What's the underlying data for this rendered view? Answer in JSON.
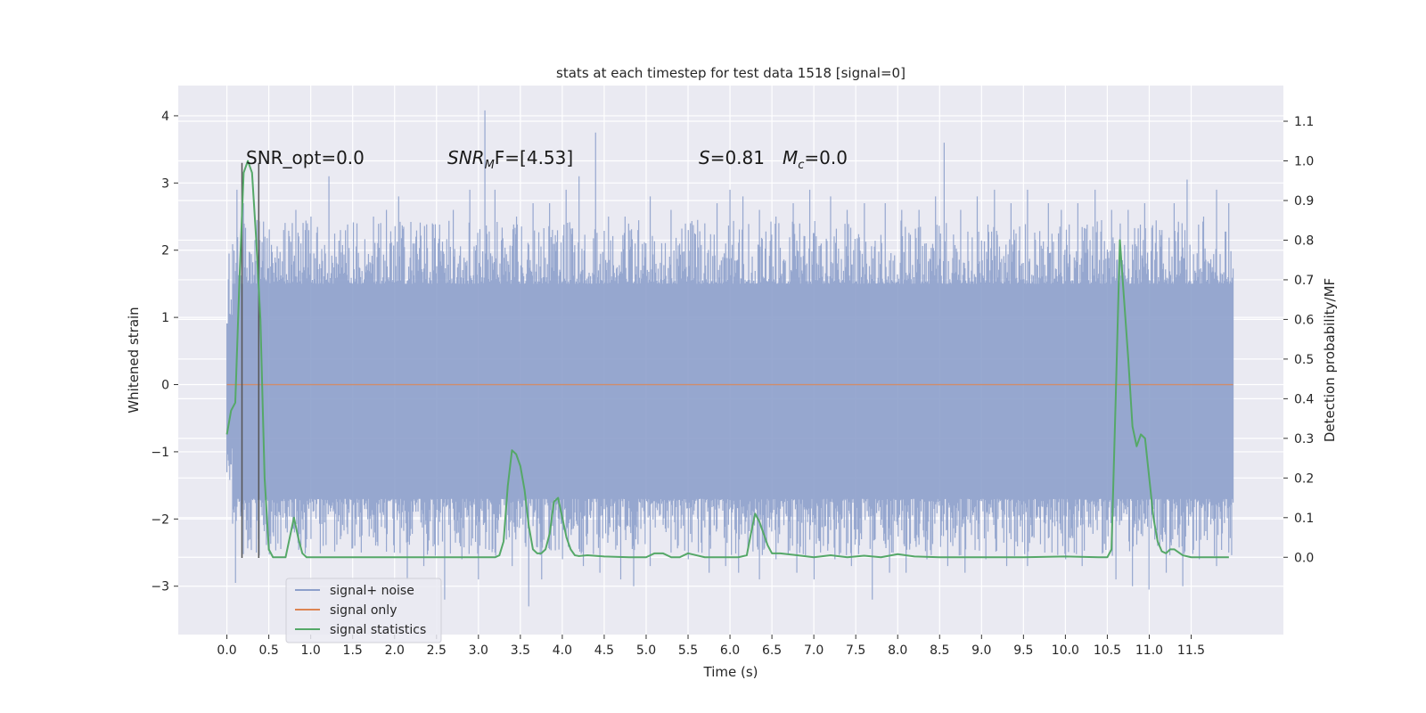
{
  "chart_data": {
    "type": "line",
    "title": "stats at each timestep for test data 1518 [signal=0]",
    "xlabel": "Time (s)",
    "ylabel_left": "Whitened strain",
    "ylabel_right": "Detection probability/MF",
    "xlim": [
      -0.58,
      12.6
    ],
    "ylim_left": [
      -3.72,
      4.45
    ],
    "ylim_right": [
      -0.195,
      1.19
    ],
    "x_ticks": [
      "0.0",
      "0.5",
      "1.0",
      "1.5",
      "2.0",
      "2.5",
      "3.0",
      "3.5",
      "4.0",
      "4.5",
      "5.0",
      "5.5",
      "6.0",
      "6.5",
      "7.0",
      "7.5",
      "8.0",
      "8.5",
      "9.0",
      "9.5",
      "10.0",
      "10.5",
      "11.0",
      "11.5"
    ],
    "y_left_ticks": [
      "−3",
      "−2",
      "−1",
      "0",
      "1",
      "2",
      "3",
      "4"
    ],
    "y_right_ticks": [
      "0.0",
      "0.1",
      "0.2",
      "0.3",
      "0.4",
      "0.5",
      "0.6",
      "0.7",
      "0.8",
      "0.9",
      "1.0",
      "1.1"
    ],
    "grid": true,
    "legend_position": "lower-left",
    "annotations": {
      "snr_opt": "SNR_opt=0.0",
      "snr_mf_sym": "SNR",
      "snr_mf_sub": "M",
      "snr_mf_rest": "F=[4.53]",
      "s_sym": "S",
      "s_val": "=0.81",
      "mc_sym": "M",
      "mc_sub": "c",
      "mc_val": "=0.0"
    },
    "markers_x": [
      0.18,
      0.38
    ],
    "colors": {
      "signal_noise": "#8da0cb",
      "signal_only": "#dd8452",
      "signal_statistics": "#55a868",
      "background": "#eaeaf2",
      "grid": "#ffffff"
    },
    "series": [
      {
        "name": "signal+ noise",
        "axis": "left",
        "x_range": [
          0.0,
          12.0
        ],
        "envelope_upper_typical": 1.5,
        "envelope_lower_typical": -1.7,
        "peaks": [
          [
            0.03,
            1.95
          ],
          [
            0.12,
            2.9
          ],
          [
            0.2,
            2.7
          ],
          [
            0.33,
            2.15
          ],
          [
            0.45,
            2.2
          ],
          [
            0.68,
            2.3
          ],
          [
            0.82,
            2.6
          ],
          [
            1.0,
            2.5
          ],
          [
            1.22,
            3.1
          ],
          [
            1.35,
            2.3
          ],
          [
            1.55,
            2.4
          ],
          [
            1.75,
            2.5
          ],
          [
            1.9,
            2.6
          ],
          [
            2.05,
            2.8
          ],
          [
            2.25,
            2.2
          ],
          [
            2.45,
            2.4
          ],
          [
            2.7,
            2.6
          ],
          [
            2.9,
            2.9
          ],
          [
            3.08,
            4.08
          ],
          [
            3.2,
            2.9
          ],
          [
            3.45,
            2.5
          ],
          [
            3.65,
            2.7
          ],
          [
            3.85,
            2.7
          ],
          [
            4.05,
            2.9
          ],
          [
            4.2,
            3.1
          ],
          [
            4.4,
            3.75
          ],
          [
            4.55,
            2.5
          ],
          [
            4.75,
            2.5
          ],
          [
            4.9,
            2.3
          ],
          [
            5.05,
            2.8
          ],
          [
            5.3,
            2.6
          ],
          [
            5.5,
            2.3
          ],
          [
            5.7,
            2.4
          ],
          [
            5.85,
            2.7
          ],
          [
            6.0,
            2.9
          ],
          [
            6.15,
            2.8
          ],
          [
            6.35,
            2.6
          ],
          [
            6.55,
            2.5
          ],
          [
            6.75,
            2.7
          ],
          [
            6.95,
            2.9
          ],
          [
            7.2,
            2.8
          ],
          [
            7.4,
            2.6
          ],
          [
            7.6,
            2.7
          ],
          [
            7.85,
            2.7
          ],
          [
            8.05,
            2.6
          ],
          [
            8.25,
            2.6
          ],
          [
            8.45,
            2.8
          ],
          [
            8.55,
            3.6
          ],
          [
            8.75,
            2.6
          ],
          [
            8.95,
            2.8
          ],
          [
            9.15,
            2.9
          ],
          [
            9.35,
            2.7
          ],
          [
            9.55,
            2.9
          ],
          [
            9.8,
            2.7
          ],
          [
            9.95,
            2.6
          ],
          [
            10.15,
            2.7
          ],
          [
            10.35,
            2.9
          ],
          [
            10.55,
            2.6
          ],
          [
            10.75,
            2.6
          ],
          [
            10.95,
            2.7
          ],
          [
            11.15,
            2.3
          ],
          [
            11.3,
            2.7
          ],
          [
            11.45,
            3.05
          ],
          [
            11.65,
            2.5
          ],
          [
            11.8,
            2.9
          ],
          [
            11.95,
            2.7
          ]
        ],
        "troughs": [
          [
            0.1,
            -2.95
          ],
          [
            0.35,
            -2.5
          ],
          [
            0.55,
            -2.2
          ],
          [
            0.72,
            -2.2
          ],
          [
            0.95,
            -2.3
          ],
          [
            1.15,
            -2.4
          ],
          [
            1.35,
            -2.3
          ],
          [
            1.6,
            -2.5
          ],
          [
            1.8,
            -2.4
          ],
          [
            2.0,
            -2.5
          ],
          [
            2.15,
            -2.9
          ],
          [
            2.35,
            -2.7
          ],
          [
            2.6,
            -3.2
          ],
          [
            2.8,
            -2.6
          ],
          [
            3.0,
            -2.9
          ],
          [
            3.2,
            -2.5
          ],
          [
            3.4,
            -2.7
          ],
          [
            3.6,
            -3.3
          ],
          [
            3.75,
            -2.9
          ],
          [
            4.0,
            -2.6
          ],
          [
            4.25,
            -2.7
          ],
          [
            4.45,
            -2.8
          ],
          [
            4.7,
            -2.9
          ],
          [
            4.85,
            -3.0
          ],
          [
            5.05,
            -2.7
          ],
          [
            5.3,
            -2.5
          ],
          [
            5.5,
            -2.6
          ],
          [
            5.75,
            -2.8
          ],
          [
            5.95,
            -2.7
          ],
          [
            6.1,
            -2.8
          ],
          [
            6.35,
            -2.9
          ],
          [
            6.55,
            -2.6
          ],
          [
            6.8,
            -2.8
          ],
          [
            7.0,
            -2.9
          ],
          [
            7.25,
            -2.6
          ],
          [
            7.45,
            -2.7
          ],
          [
            7.7,
            -3.2
          ],
          [
            7.9,
            -2.8
          ],
          [
            8.1,
            -2.8
          ],
          [
            8.35,
            -2.6
          ],
          [
            8.6,
            -2.7
          ],
          [
            8.8,
            -2.8
          ],
          [
            9.05,
            -2.6
          ],
          [
            9.3,
            -2.7
          ],
          [
            9.55,
            -2.7
          ],
          [
            9.75,
            -2.5
          ],
          [
            10.0,
            -2.6
          ],
          [
            10.2,
            -2.7
          ],
          [
            10.45,
            -2.5
          ],
          [
            10.6,
            -2.9
          ],
          [
            10.8,
            -3.0
          ],
          [
            11.0,
            -3.05
          ],
          [
            11.2,
            -2.8
          ],
          [
            11.4,
            -3.0
          ],
          [
            11.6,
            -2.6
          ],
          [
            11.8,
            -2.7
          ],
          [
            11.95,
            -2.5
          ]
        ]
      },
      {
        "name": "signal only",
        "axis": "left",
        "x": [
          0.0,
          12.0
        ],
        "y": [
          0.0,
          0.0
        ]
      },
      {
        "name": "signal statistics",
        "axis": "right",
        "x": [
          0.0,
          0.05,
          0.1,
          0.15,
          0.2,
          0.25,
          0.3,
          0.35,
          0.4,
          0.45,
          0.5,
          0.55,
          0.6,
          0.7,
          0.8,
          0.85,
          0.9,
          0.95,
          1.0,
          1.5,
          2.0,
          2.5,
          3.0,
          3.1,
          3.2,
          3.25,
          3.3,
          3.35,
          3.4,
          3.45,
          3.5,
          3.55,
          3.6,
          3.65,
          3.7,
          3.75,
          3.8,
          3.85,
          3.9,
          3.95,
          4.0,
          4.05,
          4.1,
          4.15,
          4.2,
          4.3,
          4.5,
          4.8,
          5.0,
          5.1,
          5.2,
          5.3,
          5.4,
          5.5,
          5.6,
          5.7,
          6.0,
          6.1,
          6.2,
          6.25,
          6.3,
          6.35,
          6.4,
          6.45,
          6.5,
          6.6,
          6.8,
          7.0,
          7.2,
          7.4,
          7.6,
          7.8,
          8.0,
          8.2,
          8.5,
          9.0,
          9.5,
          10.0,
          10.4,
          10.5,
          10.55,
          10.6,
          10.65,
          10.7,
          10.75,
          10.8,
          10.85,
          10.9,
          10.95,
          11.0,
          11.05,
          11.1,
          11.15,
          11.2,
          11.25,
          11.3,
          11.4,
          11.5,
          11.6,
          11.8,
          11.95
        ],
        "y": [
          0.31,
          0.37,
          0.39,
          0.7,
          0.97,
          1.0,
          0.97,
          0.8,
          0.6,
          0.2,
          0.02,
          0.0,
          0.0,
          0.0,
          0.1,
          0.05,
          0.01,
          0.0,
          0.0,
          0.0,
          0.0,
          0.0,
          0.0,
          0.0,
          0.0,
          0.005,
          0.04,
          0.18,
          0.27,
          0.26,
          0.23,
          0.17,
          0.08,
          0.02,
          0.01,
          0.01,
          0.02,
          0.06,
          0.14,
          0.15,
          0.1,
          0.05,
          0.02,
          0.005,
          0.003,
          0.005,
          0.002,
          0.0,
          0.0,
          0.01,
          0.01,
          0.0,
          0.0,
          0.01,
          0.005,
          0.0,
          0.0,
          0.0,
          0.005,
          0.06,
          0.11,
          0.09,
          0.06,
          0.03,
          0.01,
          0.01,
          0.005,
          0.0,
          0.005,
          0.0,
          0.004,
          0.0,
          0.008,
          0.002,
          0.0,
          0.0,
          0.0,
          0.002,
          0.0,
          0.0,
          0.02,
          0.4,
          0.8,
          0.65,
          0.5,
          0.33,
          0.28,
          0.31,
          0.3,
          0.2,
          0.1,
          0.04,
          0.015,
          0.01,
          0.02,
          0.02,
          0.005,
          0.0,
          0.0,
          0.0,
          0.0
        ]
      }
    ]
  }
}
